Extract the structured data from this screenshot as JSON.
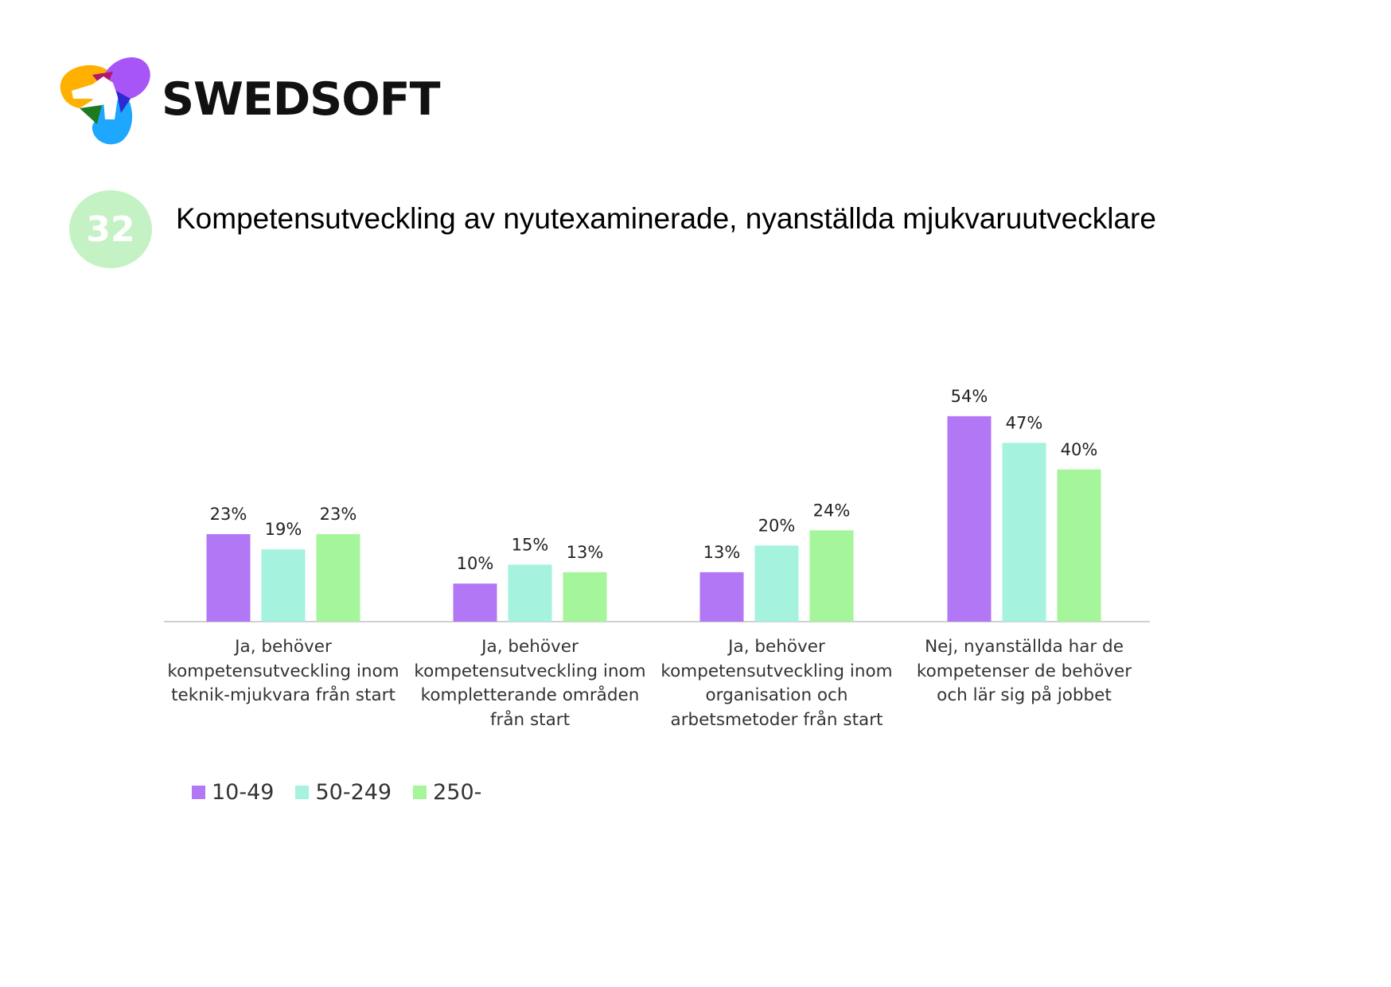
{
  "header": {
    "brand": "SWEDSOFT",
    "badge_number": "32",
    "title": "Kompetensutveckling av nyutexaminerade, nyanställda mjukvaruutvecklare"
  },
  "logo": {
    "icon": "swedsoft-propeller-logo",
    "colors": [
      "#ffb000",
      "#a855f7",
      "#1ea7ff",
      "#1f7a1f",
      "#b0186b",
      "#2b2bd1"
    ]
  },
  "chart_data": {
    "type": "bar",
    "title": "",
    "xlabel": "",
    "ylabel": "",
    "ylim": [
      0,
      60
    ],
    "grid": false,
    "legend_position": "bottom-left",
    "categories": [
      "Ja, behöver kompetensutveckling inom teknik-mjukvara från start",
      "Ja, behöver kompetensutveckling inom kompletterande områden från start",
      "Ja, behöver kompetensutveckling inom organisation och arbetsmetoder från start",
      "Nej, nyanställda har de kompetenser de behöver och lär sig på jobbet"
    ],
    "category_lines": [
      [
        "Ja, behöver",
        "kompetensutveckling inom",
        "teknik-mjukvara från start"
      ],
      [
        "Ja, behöver",
        "kompetensutveckling inom",
        "kompletterande områden",
        "från start"
      ],
      [
        "Ja, behöver",
        "kompetensutveckling inom",
        "organisation och",
        "arbetsmetoder från start"
      ],
      [
        "Nej, nyanställda har de",
        "kompetenser de behöver",
        "och lär sig på jobbet"
      ]
    ],
    "series": [
      {
        "name": "10-49",
        "color": "#b177f5",
        "values": [
          23,
          10,
          13,
          54
        ],
        "labels": [
          "23%",
          "10%",
          "13%",
          "54%"
        ]
      },
      {
        "name": "50-249",
        "color": "#a5f3df",
        "values": [
          19,
          15,
          20,
          47
        ],
        "labels": [
          "19%",
          "15%",
          "20%",
          "47%"
        ]
      },
      {
        "name": "250-",
        "color": "#a5f59a",
        "values": [
          23,
          13,
          24,
          40
        ],
        "labels": [
          "23%",
          "13%",
          "24%",
          "40%"
        ]
      }
    ]
  }
}
